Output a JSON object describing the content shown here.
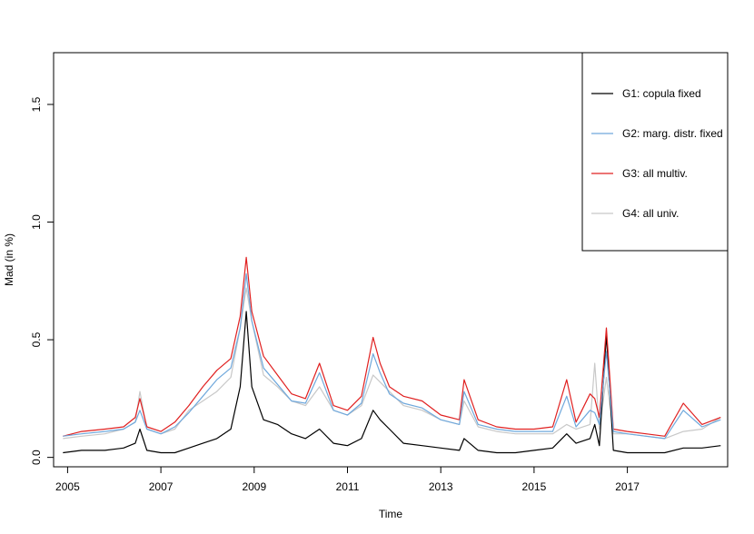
{
  "chart_data": {
    "type": "line",
    "title": "",
    "xlabel": "Time",
    "ylabel": "Mad (in %)",
    "xlim": [
      2004.7,
      2019.15
    ],
    "ylim": [
      -0.04,
      1.72
    ],
    "xticks": [
      2005,
      2007,
      2009,
      2011,
      2013,
      2015,
      2017
    ],
    "yticks": [
      0.0,
      0.5,
      1.0,
      1.5
    ],
    "ytick_labels": [
      "0.0",
      "0.5",
      "1.0",
      "1.5"
    ],
    "grid": false,
    "legend_position": "top-right",
    "series": [
      {
        "name": "G4: all univ.",
        "color": "#c8c8c8",
        "x": [
          2004.9,
          2005.3,
          2005.8,
          2006.2,
          2006.45,
          2006.55,
          2006.7,
          2007.0,
          2007.3,
          2007.6,
          2007.9,
          2008.2,
          2008.5,
          2008.7,
          2008.83,
          2008.95,
          2009.2,
          2009.5,
          2009.8,
          2010.1,
          2010.4,
          2010.7,
          2011.0,
          2011.3,
          2011.55,
          2011.7,
          2011.9,
          2012.2,
          2012.6,
          2013.0,
          2013.4,
          2013.5,
          2013.8,
          2014.2,
          2014.6,
          2015.0,
          2015.4,
          2015.7,
          2015.9,
          2016.2,
          2016.3,
          2016.4,
          2016.55,
          2016.7,
          2017.0,
          2017.4,
          2017.8,
          2018.2,
          2018.6,
          2019.0
        ],
        "y": [
          0.08,
          0.09,
          0.1,
          0.12,
          0.15,
          0.28,
          0.12,
          0.1,
          0.12,
          0.2,
          0.24,
          0.28,
          0.34,
          0.55,
          0.72,
          0.58,
          0.35,
          0.3,
          0.24,
          0.22,
          0.3,
          0.2,
          0.18,
          0.22,
          0.35,
          0.32,
          0.28,
          0.22,
          0.2,
          0.16,
          0.14,
          0.24,
          0.13,
          0.11,
          0.1,
          0.1,
          0.1,
          0.14,
          0.12,
          0.14,
          0.4,
          0.12,
          0.34,
          0.1,
          0.1,
          0.09,
          0.08,
          0.11,
          0.12,
          0.17
        ]
      },
      {
        "name": "G1: copula fixed",
        "color": "#000000",
        "x": [
          2004.9,
          2005.3,
          2005.8,
          2006.2,
          2006.45,
          2006.55,
          2006.7,
          2007.0,
          2007.3,
          2007.6,
          2007.9,
          2008.2,
          2008.5,
          2008.7,
          2008.83,
          2008.95,
          2009.2,
          2009.5,
          2009.8,
          2010.1,
          2010.4,
          2010.7,
          2011.0,
          2011.3,
          2011.55,
          2011.7,
          2011.9,
          2012.2,
          2012.6,
          2013.0,
          2013.4,
          2013.5,
          2013.8,
          2014.2,
          2014.6,
          2015.0,
          2015.4,
          2015.7,
          2015.9,
          2016.2,
          2016.3,
          2016.4,
          2016.55,
          2016.7,
          2017.0,
          2017.4,
          2017.8,
          2018.2,
          2018.6,
          2019.0
        ],
        "y": [
          0.02,
          0.03,
          0.03,
          0.04,
          0.06,
          0.12,
          0.03,
          0.02,
          0.02,
          0.04,
          0.06,
          0.08,
          0.12,
          0.3,
          0.62,
          0.3,
          0.16,
          0.14,
          0.1,
          0.08,
          0.12,
          0.06,
          0.05,
          0.08,
          0.2,
          0.16,
          0.12,
          0.06,
          0.05,
          0.04,
          0.03,
          0.08,
          0.03,
          0.02,
          0.02,
          0.03,
          0.04,
          0.1,
          0.06,
          0.08,
          0.14,
          0.05,
          0.52,
          0.03,
          0.02,
          0.02,
          0.02,
          0.04,
          0.04,
          0.05
        ]
      },
      {
        "name": "G3: all multiv.",
        "color": "#e02020",
        "x": [
          2004.9,
          2005.3,
          2005.8,
          2006.2,
          2006.45,
          2006.55,
          2006.7,
          2007.0,
          2007.3,
          2007.6,
          2007.9,
          2008.2,
          2008.5,
          2008.7,
          2008.83,
          2008.95,
          2009.2,
          2009.5,
          2009.8,
          2010.1,
          2010.4,
          2010.7,
          2011.0,
          2011.3,
          2011.55,
          2011.7,
          2011.9,
          2012.2,
          2012.6,
          2013.0,
          2013.4,
          2013.5,
          2013.8,
          2014.2,
          2014.6,
          2015.0,
          2015.4,
          2015.7,
          2015.9,
          2016.2,
          2016.3,
          2016.4,
          2016.55,
          2016.7,
          2017.0,
          2017.4,
          2017.8,
          2018.2,
          2018.6,
          2019.0
        ],
        "y": [
          0.09,
          0.11,
          0.12,
          0.13,
          0.17,
          0.25,
          0.13,
          0.11,
          0.15,
          0.22,
          0.3,
          0.37,
          0.42,
          0.6,
          0.85,
          0.62,
          0.43,
          0.35,
          0.27,
          0.25,
          0.4,
          0.22,
          0.2,
          0.26,
          0.51,
          0.4,
          0.3,
          0.26,
          0.24,
          0.18,
          0.16,
          0.33,
          0.16,
          0.13,
          0.12,
          0.12,
          0.13,
          0.33,
          0.15,
          0.27,
          0.25,
          0.17,
          0.55,
          0.12,
          0.11,
          0.1,
          0.09,
          0.23,
          0.14,
          0.17
        ]
      },
      {
        "name": "G2: marg. distr. fixed",
        "color": "#6fa8dc",
        "x": [
          2004.9,
          2005.3,
          2005.8,
          2006.2,
          2006.45,
          2006.55,
          2006.7,
          2007.0,
          2007.3,
          2007.6,
          2007.9,
          2008.2,
          2008.5,
          2008.7,
          2008.83,
          2008.95,
          2009.2,
          2009.5,
          2009.8,
          2010.1,
          2010.4,
          2010.7,
          2011.0,
          2011.3,
          2011.55,
          2011.7,
          2011.9,
          2012.2,
          2012.6,
          2013.0,
          2013.4,
          2013.5,
          2013.8,
          2014.2,
          2014.6,
          2015.0,
          2015.4,
          2015.7,
          2015.9,
          2016.2,
          2016.3,
          2016.4,
          2016.55,
          2016.7,
          2017.0,
          2017.4,
          2017.8,
          2018.2,
          2018.6,
          2019.0
        ],
        "y": [
          0.09,
          0.1,
          0.11,
          0.12,
          0.15,
          0.2,
          0.12,
          0.1,
          0.13,
          0.19,
          0.26,
          0.33,
          0.38,
          0.55,
          0.78,
          0.58,
          0.38,
          0.31,
          0.24,
          0.23,
          0.36,
          0.2,
          0.18,
          0.23,
          0.44,
          0.36,
          0.27,
          0.23,
          0.21,
          0.16,
          0.14,
          0.28,
          0.14,
          0.12,
          0.11,
          0.11,
          0.11,
          0.26,
          0.13,
          0.2,
          0.19,
          0.14,
          0.45,
          0.11,
          0.1,
          0.09,
          0.08,
          0.2,
          0.13,
          0.16
        ]
      }
    ],
    "legend_order": [
      0,
      1,
      2,
      3
    ]
  }
}
